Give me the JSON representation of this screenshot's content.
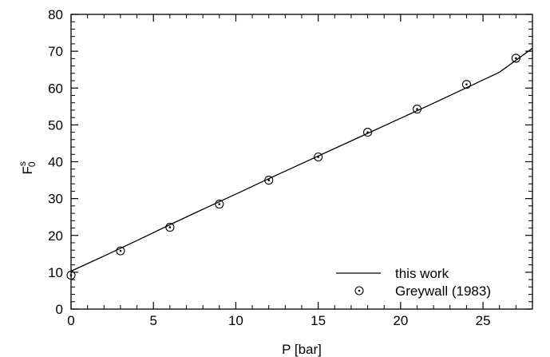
{
  "chart_data": {
    "type": "line",
    "xlabel": "P [bar]",
    "ylabel": {
      "base": "F",
      "sup": "s",
      "sub": "0"
    },
    "xlim": [
      0,
      28
    ],
    "ylim": [
      0,
      80
    ],
    "xticks": [
      0,
      5,
      10,
      15,
      20,
      25
    ],
    "yticks": [
      0,
      10,
      20,
      30,
      40,
      50,
      60,
      70,
      80
    ],
    "grid": false,
    "legend_position": "bottom-right",
    "series": [
      {
        "name": "this work",
        "style": "line",
        "color": "#000000",
        "x": [
          0,
          2,
          4,
          6,
          8,
          10,
          12,
          14,
          16,
          18,
          20,
          22,
          24,
          26,
          28
        ],
        "y": [
          10.3,
          14.4,
          18.6,
          22.9,
          27.1,
          31.2,
          35.4,
          39.5,
          43.6,
          47.7,
          51.8,
          55.9,
          60.1,
          64.3,
          70.8
        ]
      },
      {
        "name": "Greywall (1983)",
        "style": "marker",
        "color": "#000000",
        "x": [
          0,
          3,
          6,
          9,
          12,
          15,
          18,
          21,
          24,
          27
        ],
        "y": [
          9.2,
          15.8,
          22.2,
          28.5,
          35.0,
          41.3,
          48.0,
          54.3,
          61.0,
          68.1
        ]
      }
    ]
  }
}
